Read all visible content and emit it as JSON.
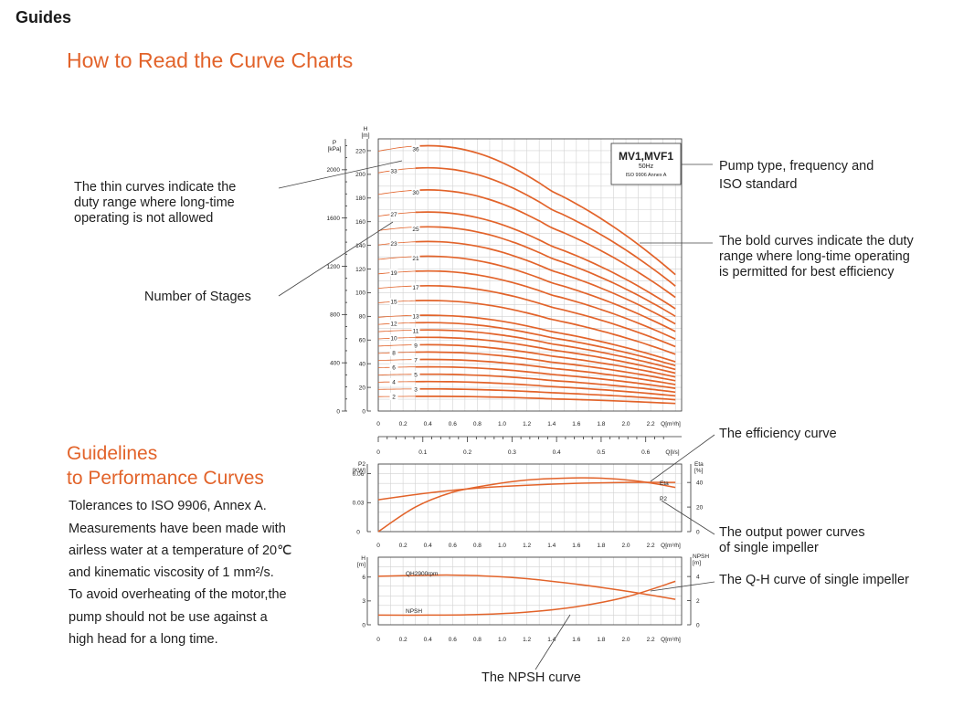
{
  "header": {
    "title": "Guides",
    "heading": "How to Read the Curve Charts"
  },
  "callouts": {
    "thin_curves": [
      "The thin curves indicate the",
      "duty range where long-time",
      "operating is not allowed"
    ],
    "stages": "Number of Stages",
    "pump_type": [
      "Pump type, frequency and",
      "ISO standard"
    ],
    "bold_curves": [
      "The bold curves indicate the duty",
      "range where long-time operating",
      "is permitted for best efficiency"
    ],
    "efficiency": "The efficiency curve",
    "output_power": [
      "The output power curves",
      "of single impeller"
    ],
    "qh": "The Q-H curve of single impeller",
    "npsh": "The NPSH curve"
  },
  "guidelines": {
    "heading_line1": "Guidelines",
    "heading_line2": "to Performance Curves",
    "lines": [
      "Tolerances to ISO 9906, Annex A.",
      "Measurements have been made with",
      "airless water at a temperature of 20℃",
      "and kinematic viscosity of 1 mm²/s.",
      "To avoid overheating of the motor,the",
      "pump should not be use against a",
      "high head for a long time."
    ]
  },
  "chart_data": [
    {
      "type": "line",
      "legend_box": {
        "model": "MV1,MVF1",
        "frequency": "50Hz",
        "standard": "ISO 9906 Annex A"
      },
      "left_axis_label": "P\n[kPa]",
      "left_axis_ticks": [
        "0",
        "400",
        "800",
        "1200",
        "1600",
        "2000"
      ],
      "ylabel": "H\n[m]",
      "y_ticks": [
        "0",
        "20",
        "40",
        "60",
        "80",
        "100",
        "120",
        "140",
        "160",
        "180",
        "200",
        "220"
      ],
      "ylim": [
        0,
        230
      ],
      "xlabel": "Q[m³/h]",
      "x_ticks": [
        "0",
        "0.2",
        "0.4",
        "0.6",
        "0.8",
        "1.0",
        "1.2",
        "1.4",
        "1.6",
        "1.8",
        "2.0",
        "2.2"
      ],
      "xlim": [
        0,
        2.45
      ],
      "top_axis_label": "Q[l/s]",
      "top_axis_ticks": [
        "0",
        "0.1",
        "0.2",
        "0.3",
        "0.4",
        "0.5",
        "0.6"
      ],
      "stages": [
        36,
        33,
        30,
        27,
        25,
        23,
        21,
        19,
        17,
        15,
        13,
        12,
        11,
        10,
        9,
        8,
        7,
        6,
        5,
        4,
        3,
        2
      ],
      "head_per_stage_shutoff_m": 6.1,
      "head_per_stage_end_m": 3.2,
      "q_end": 2.4
    },
    {
      "type": "line",
      "left_axis_label": "P2\n[KW]",
      "left_ticks": [
        "0",
        "0.03",
        "0.06"
      ],
      "right_axis_label": "Eta\n[%]",
      "right_ticks": [
        "0",
        "20",
        "40"
      ],
      "x_ticks": [
        "0",
        "0.2",
        "0.4",
        "0.6",
        "0.8",
        "1.0",
        "1.2",
        "1.4",
        "1.6",
        "1.8",
        "2.0",
        "2.2"
      ],
      "xlabel": "Q[m³/h]",
      "series": [
        {
          "name": "Eta",
          "x": [
            0,
            0.3,
            0.6,
            0.9,
            1.2,
            1.5,
            1.8,
            2.1,
            2.4
          ],
          "y": [
            0,
            20,
            32,
            38,
            42,
            43.5,
            43.5,
            41,
            36
          ]
        },
        {
          "name": "P2",
          "x": [
            0,
            0.4,
            0.8,
            1.2,
            1.6,
            2.0,
            2.4
          ],
          "y": [
            0.033,
            0.04,
            0.045,
            0.048,
            0.05,
            0.051,
            0.051
          ]
        }
      ]
    },
    {
      "type": "line",
      "left_axis_label": "H\n[m]",
      "left_ticks": [
        "0",
        "3",
        "6"
      ],
      "right_axis_label": "NPSH\n[m]",
      "right_ticks": [
        "0",
        "2",
        "4"
      ],
      "x_ticks": [
        "0",
        "0.2",
        "0.4",
        "0.6",
        "0.8",
        "1.0",
        "1.2",
        "1.4",
        "1.6",
        "1.8",
        "2.0",
        "2.2"
      ],
      "xlabel": "Q[m³/h]",
      "series": [
        {
          "name": "QH2900rpm",
          "x": [
            0,
            0.3,
            0.6,
            0.9,
            1.2,
            1.5,
            1.8,
            2.1,
            2.4
          ],
          "y": [
            6.1,
            6.2,
            6.25,
            6.1,
            5.8,
            5.3,
            4.7,
            4.0,
            3.2
          ]
        },
        {
          "name": "NPSH",
          "x": [
            0,
            0.4,
            0.8,
            1.2,
            1.6,
            2.0,
            2.4
          ],
          "y": [
            0.8,
            0.8,
            0.85,
            1.05,
            1.5,
            2.3,
            3.6
          ]
        }
      ]
    }
  ],
  "colors": {
    "accent": "#e2632a",
    "text": "#1e1e1e",
    "grid": "#d2d2d2"
  }
}
